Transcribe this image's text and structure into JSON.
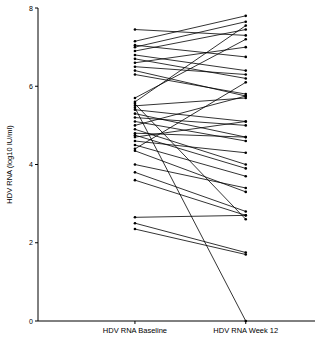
{
  "chart_data": {
    "type": "line",
    "y_label": "HDV RNA (log10 IU/ml)",
    "categories": [
      "HDV RNA Baseline",
      "HDV RNA Week 12"
    ],
    "ylim": [
      0,
      8
    ],
    "yticks": [
      0,
      2,
      4,
      6,
      8
    ],
    "color": "#000000",
    "marker": "circle",
    "series": [
      {
        "values": [
          7.45,
          7.3
        ]
      },
      {
        "values": [
          7.15,
          7.8
        ]
      },
      {
        "values": [
          7.05,
          6.75
        ]
      },
      {
        "values": [
          7.0,
          7.65
        ]
      },
      {
        "values": [
          6.9,
          7.45
        ]
      },
      {
        "values": [
          6.8,
          6.4
        ]
      },
      {
        "values": [
          6.7,
          6.2
        ]
      },
      {
        "values": [
          6.6,
          7.0
        ]
      },
      {
        "values": [
          6.5,
          6.3
        ]
      },
      {
        "values": [
          6.4,
          5.75
        ]
      },
      {
        "values": [
          6.3,
          5.8
        ]
      },
      {
        "values": [
          5.7,
          7.2
        ]
      },
      {
        "values": [
          5.6,
          7.55
        ]
      },
      {
        "values": [
          5.55,
          2.6
        ]
      },
      {
        "values": [
          5.5,
          5.7
        ]
      },
      {
        "values": [
          5.45,
          0.0
        ]
      },
      {
        "values": [
          5.4,
          5.1
        ]
      },
      {
        "values": [
          5.3,
          4.7
        ]
      },
      {
        "values": [
          5.2,
          5.0
        ]
      },
      {
        "values": [
          5.1,
          4.6
        ]
      },
      {
        "values": [
          5.0,
          5.75
        ]
      },
      {
        "values": [
          4.9,
          4.0
        ]
      },
      {
        "values": [
          4.8,
          4.7
        ]
      },
      {
        "values": [
          4.75,
          3.9
        ]
      },
      {
        "values": [
          4.7,
          5.1
        ]
      },
      {
        "values": [
          4.6,
          4.3
        ]
      },
      {
        "values": [
          4.5,
          3.7
        ]
      },
      {
        "values": [
          4.4,
          6.1
        ]
      },
      {
        "values": [
          4.35,
          3.3
        ]
      },
      {
        "values": [
          4.0,
          3.4
        ]
      },
      {
        "values": [
          3.8,
          2.8
        ]
      },
      {
        "values": [
          3.6,
          2.7
        ]
      },
      {
        "values": [
          2.65,
          2.7
        ]
      },
      {
        "values": [
          2.5,
          1.75
        ]
      },
      {
        "values": [
          2.35,
          1.7
        ]
      }
    ]
  }
}
